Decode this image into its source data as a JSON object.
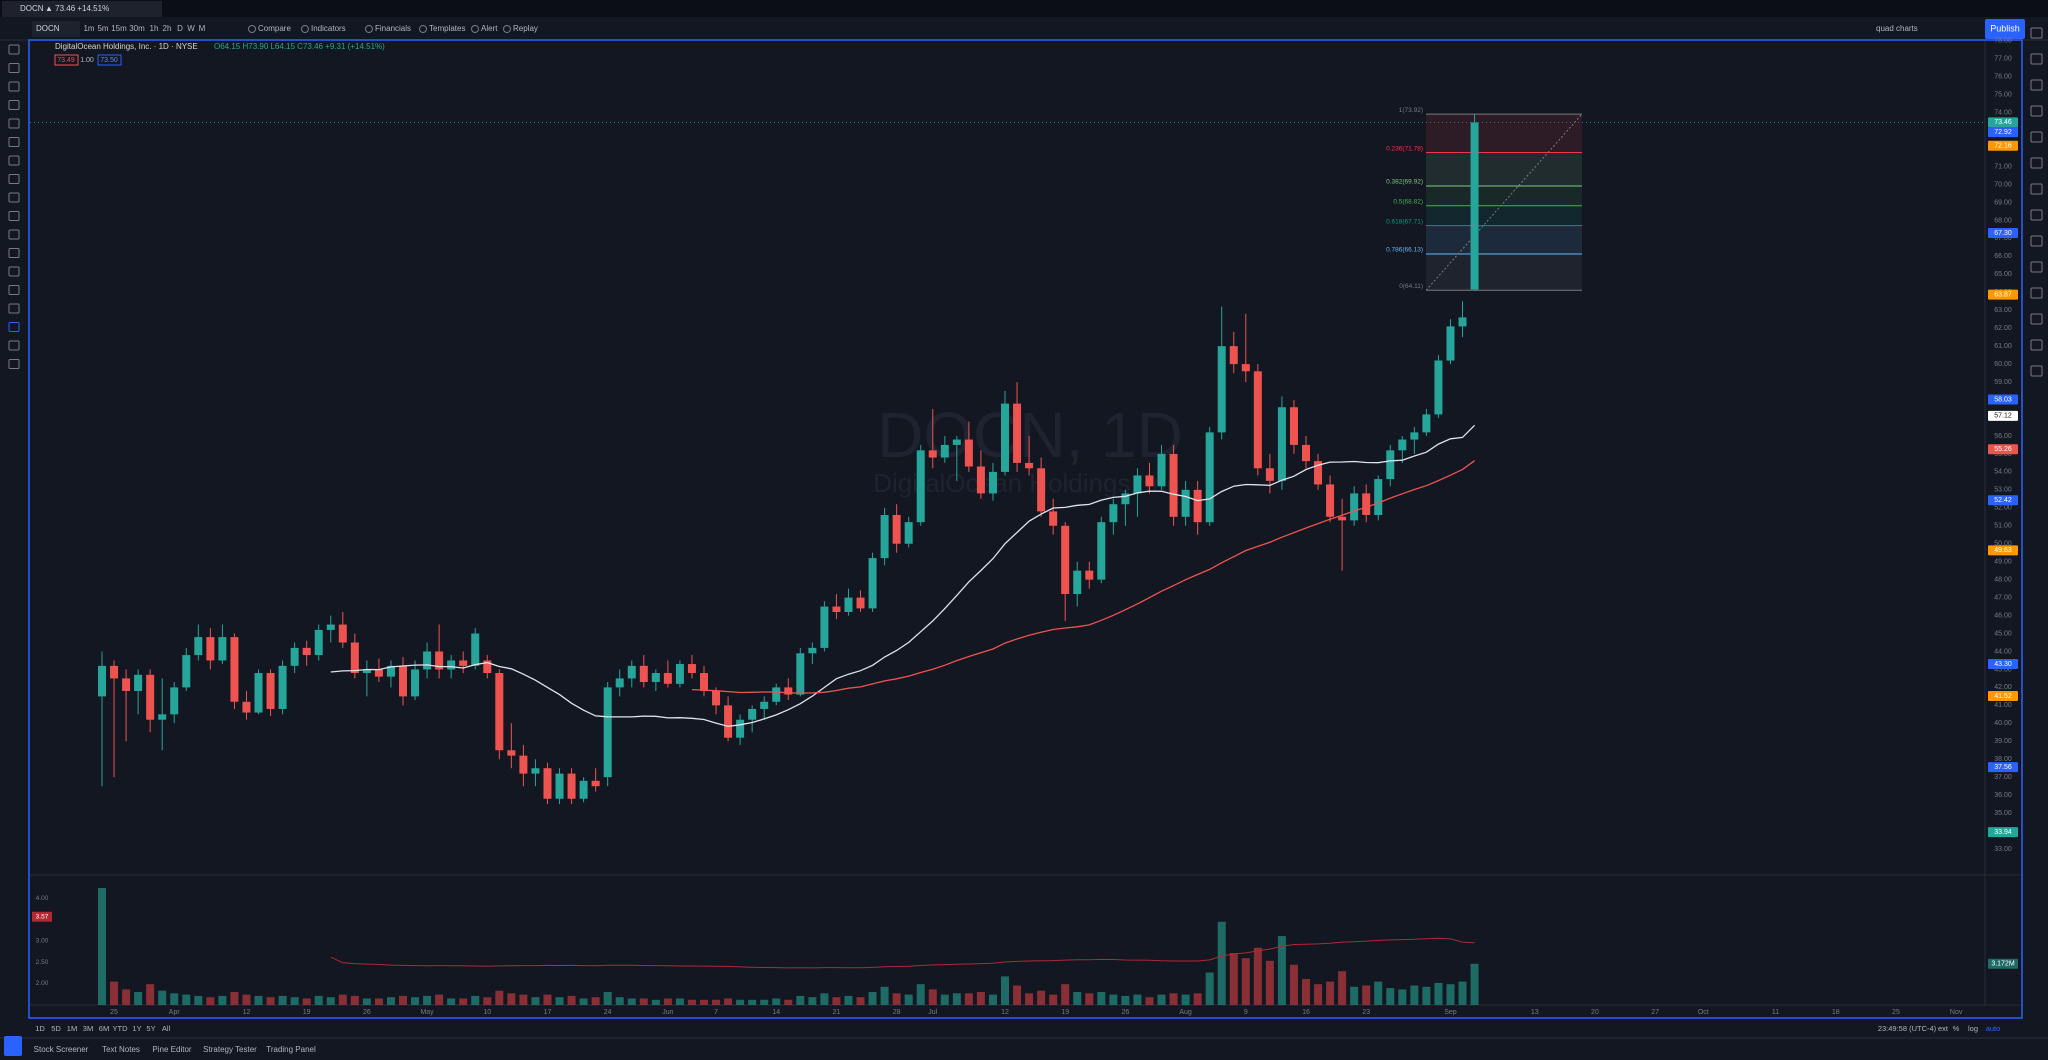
{
  "tab": {
    "symbol": "DOCN",
    "quote": "▲ 73.46 +14.51%"
  },
  "toolbar": {
    "symbol": "DOCN",
    "intervals": [
      "1m",
      "5m",
      "15m",
      "30m",
      "1h",
      "2h",
      "D",
      "W",
      "M"
    ],
    "buttons": [
      "Compare",
      "Indicators",
      "Financials",
      "Templates",
      "Alert",
      "Replay"
    ],
    "layout": "quad charts",
    "publish": "Publish"
  },
  "legend": {
    "title": "DigitalOcean Holdings, Inc. · 1D · NYSE",
    "ohlc": "O64.15 H73.90 L64.15 C73.46 +9.31 (+14.51%)",
    "sell": "73.49",
    "spread": "1.00",
    "buy": "73.50"
  },
  "watermark": {
    "symbol": "DOCN, 1D",
    "name": "DigitalOcean Holdings, Inc."
  },
  "price_axis": {
    "ticks": [
      {
        "value": 78,
        "label": "78.00"
      },
      {
        "value": 77,
        "label": "77.00"
      },
      {
        "value": 76,
        "label": "76.00"
      },
      {
        "value": 75,
        "label": "75.00"
      },
      {
        "value": 74,
        "label": "74.00"
      },
      {
        "value": 73,
        "label": "73.00"
      },
      {
        "value": 72,
        "label": "72.00"
      },
      {
        "value": 71,
        "label": "71.00"
      },
      {
        "value": 70,
        "label": "70.00"
      },
      {
        "value": 69,
        "label": "69.00"
      },
      {
        "value": 68,
        "label": "68.00"
      },
      {
        "value": 67,
        "label": "67.00"
      },
      {
        "value": 66,
        "label": "66.00"
      },
      {
        "value": 65,
        "label": "65.00"
      },
      {
        "value": 64,
        "label": "64.00"
      },
      {
        "value": 63,
        "label": "63.00"
      },
      {
        "value": 62,
        "label": "62.00"
      },
      {
        "value": 61,
        "label": "61.00"
      },
      {
        "value": 60,
        "label": "60.00"
      },
      {
        "value": 59,
        "label": "59.00"
      },
      {
        "value": 58,
        "label": "58.00"
      },
      {
        "value": 57,
        "label": "57.00"
      },
      {
        "value": 56,
        "label": "56.00"
      },
      {
        "value": 55,
        "label": "55.00"
      },
      {
        "value": 54,
        "label": "54.00"
      },
      {
        "value": 53,
        "label": "53.00"
      },
      {
        "value": 52,
        "label": "52.00"
      },
      {
        "value": 51,
        "label": "51.00"
      },
      {
        "value": 50,
        "label": "50.00"
      },
      {
        "value": 49,
        "label": "49.00"
      },
      {
        "value": 48,
        "label": "48.00"
      },
      {
        "value": 47,
        "label": "47.00"
      },
      {
        "value": 46,
        "label": "46.00"
      },
      {
        "value": 45,
        "label": "45.00"
      },
      {
        "value": 44,
        "label": "44.00"
      },
      {
        "value": 43,
        "label": "43.00"
      },
      {
        "value": 42,
        "label": "42.00"
      },
      {
        "value": 41,
        "label": "41.00"
      },
      {
        "value": 40,
        "label": "40.00"
      },
      {
        "value": 39,
        "label": "39.00"
      },
      {
        "value": 38,
        "label": "38.00"
      },
      {
        "value": 37,
        "label": "37.00"
      },
      {
        "value": 36,
        "label": "36.00"
      },
      {
        "value": 35,
        "label": "35.00"
      },
      {
        "value": 34,
        "label": "34.00"
      },
      {
        "value": 33,
        "label": "33.00"
      }
    ],
    "markers": [
      {
        "value": 73.46,
        "label": "73.46",
        "color": "#26a69a"
      },
      {
        "value": 72.92,
        "label": "72.92",
        "color": "#2962ff"
      },
      {
        "value": 72.16,
        "label": "72.16",
        "color": "#ff9800"
      },
      {
        "value": 67.3,
        "label": "67.30",
        "color": "#2962ff"
      },
      {
        "value": 63.87,
        "label": "63.87",
        "color": "#ff9800"
      },
      {
        "value": 58.03,
        "label": "58.03",
        "color": "#2962ff"
      },
      {
        "value": 57.12,
        "label": "57.12",
        "color": "#ffffff"
      },
      {
        "value": 55.26,
        "label": "55.26",
        "color": "#ef5350"
      },
      {
        "value": 52.42,
        "label": "52.42",
        "color": "#2962ff"
      },
      {
        "value": 49.63,
        "label": "49.63",
        "color": "#ff9800"
      },
      {
        "value": 43.3,
        "label": "43.30",
        "color": "#2962ff"
      },
      {
        "value": 41.52,
        "label": "41.52",
        "color": "#ff9800"
      },
      {
        "value": 37.56,
        "label": "37.56",
        "color": "#2962ff"
      },
      {
        "value": 33.94,
        "label": "33.94",
        "color": "#26a69a"
      }
    ]
  },
  "fib": {
    "levels": [
      {
        "value": 73.92,
        "label": "1(73.92)",
        "color": "#787b86"
      },
      {
        "value": 71.78,
        "label": "0.236(71.78)",
        "color": "#f23645"
      },
      {
        "value": 69.92,
        "label": "0.382(69.92)",
        "color": "#81c784"
      },
      {
        "value": 68.82,
        "label": "0.5(68.82)",
        "color": "#4caf50"
      },
      {
        "value": 67.71,
        "label": "0.618(67.71)",
        "color": "#089981"
      },
      {
        "value": 66.13,
        "label": "0.786(66.13)",
        "color": "#64b5f6"
      },
      {
        "value": 64.11,
        "label": "0(64.11)",
        "color": "#787b86"
      }
    ]
  },
  "candles": [
    [
      41.5,
      44,
      36.5,
      43.2
    ],
    [
      43.2,
      43.5,
      37,
      42.5
    ],
    [
      42.5,
      43,
      39,
      41.8
    ],
    [
      41.8,
      43,
      40.5,
      42.7
    ],
    [
      42.7,
      43,
      39.5,
      40.2
    ],
    [
      40.2,
      42.5,
      38.5,
      40.5
    ],
    [
      40.5,
      42.3,
      40,
      42
    ],
    [
      42,
      44.2,
      41.8,
      43.8
    ],
    [
      43.8,
      45.5,
      43.5,
      44.8
    ],
    [
      44.8,
      45.3,
      43,
      43.5
    ],
    [
      43.5,
      45.5,
      43.3,
      44.8
    ],
    [
      44.8,
      45,
      40.8,
      41.2
    ],
    [
      41.2,
      41.8,
      40.2,
      40.6
    ],
    [
      40.6,
      43,
      40.5,
      42.8
    ],
    [
      42.8,
      43,
      40.4,
      40.8
    ],
    [
      40.8,
      43.5,
      40.5,
      43.2
    ],
    [
      43.2,
      44.5,
      42.8,
      44.2
    ],
    [
      44.2,
      44.6,
      43.2,
      43.8
    ],
    [
      43.8,
      45.5,
      43.5,
      45.2
    ],
    [
      45.2,
      46,
      44.5,
      45.5
    ],
    [
      45.5,
      46.2,
      44.2,
      44.5
    ],
    [
      44.5,
      45,
      42.5,
      42.8
    ],
    [
      42.8,
      43.5,
      41.5,
      43
    ],
    [
      43,
      43.6,
      42.3,
      42.6
    ],
    [
      42.6,
      43.5,
      42,
      43.2
    ],
    [
      43.2,
      43.7,
      41,
      41.5
    ],
    [
      41.5,
      43.5,
      41.3,
      43
    ],
    [
      43,
      44.5,
      42.5,
      44
    ],
    [
      44,
      45.5,
      42.5,
      43
    ],
    [
      43,
      43.8,
      42.5,
      43.5
    ],
    [
      43.5,
      44,
      42.8,
      43.2
    ],
    [
      43.2,
      45.3,
      43,
      45
    ],
    [
      43.5,
      43.8,
      42.5,
      42.8
    ],
    [
      42.8,
      43,
      38,
      38.5
    ],
    [
      38.5,
      40,
      37.5,
      38.2
    ],
    [
      38.2,
      38.8,
      36.5,
      37.2
    ],
    [
      37.2,
      38,
      36.5,
      37.5
    ],
    [
      37.5,
      37.8,
      35.5,
      35.8
    ],
    [
      35.8,
      37.5,
      35.5,
      37.2
    ],
    [
      37.2,
      37.5,
      35.5,
      35.8
    ],
    [
      35.8,
      37,
      35.6,
      36.8
    ],
    [
      36.8,
      37.5,
      36.2,
      36.5
    ],
    [
      37,
      42.3,
      36.5,
      42
    ],
    [
      42,
      43,
      41.5,
      42.5
    ],
    [
      42.5,
      43.5,
      42,
      43.2
    ],
    [
      43.2,
      43.8,
      42,
      42.3
    ],
    [
      42.3,
      43,
      41.8,
      42.8
    ],
    [
      42.8,
      43.5,
      42,
      42.2
    ],
    [
      42.2,
      43.5,
      42,
      43.3
    ],
    [
      43.3,
      43.8,
      42.5,
      42.8
    ],
    [
      42.8,
      43.2,
      41.5,
      41.8
    ],
    [
      41.8,
      42,
      40.5,
      41
    ],
    [
      41,
      41.5,
      39,
      39.2
    ],
    [
      39.2,
      40.5,
      38.8,
      40.2
    ],
    [
      40.2,
      41,
      39.5,
      40.8
    ],
    [
      40.8,
      41.5,
      40.2,
      41.2
    ],
    [
      41.2,
      42.2,
      41,
      42
    ],
    [
      42,
      42.5,
      41.3,
      41.6
    ],
    [
      41.6,
      44.2,
      41.5,
      43.9
    ],
    [
      43.9,
      44.5,
      43.3,
      44.2
    ],
    [
      44.2,
      46.8,
      44,
      46.5
    ],
    [
      46.5,
      47.2,
      45.8,
      46.2
    ],
    [
      46.2,
      47.5,
      46,
      47
    ],
    [
      47,
      47.4,
      46.2,
      46.4
    ],
    [
      46.4,
      49.5,
      46.2,
      49.2
    ],
    [
      49.2,
      52,
      48.8,
      51.6
    ],
    [
      51.6,
      52.2,
      49.5,
      50
    ],
    [
      50,
      51.5,
      49.8,
      51.2
    ],
    [
      51.2,
      55.5,
      51,
      55.2
    ],
    [
      55.2,
      57.5,
      54.2,
      54.8
    ],
    [
      54.8,
      56,
      54.5,
      55.5
    ],
    [
      55.5,
      56,
      53.5,
      55.8
    ],
    [
      55.8,
      56.8,
      54,
      54.3
    ],
    [
      54.3,
      55.2,
      52.5,
      52.8
    ],
    [
      52.8,
      54.5,
      52.4,
      54
    ],
    [
      54,
      58.5,
      53.8,
      57.8
    ],
    [
      57.8,
      59,
      54,
      54.5
    ],
    [
      54.5,
      56,
      53.8,
      54.2
    ],
    [
      54.2,
      54.8,
      51.5,
      51.8
    ],
    [
      51.8,
      52.5,
      50.5,
      51
    ],
    [
      51,
      51.2,
      45.7,
      47.2
    ],
    [
      47.2,
      49,
      46.5,
      48.5
    ],
    [
      48.5,
      49,
      47.5,
      48
    ],
    [
      48,
      51.5,
      47.8,
      51.2
    ],
    [
      51.2,
      52.5,
      50.5,
      52.2
    ],
    [
      52.2,
      53,
      51,
      52.8
    ],
    [
      52.8,
      54.2,
      51.5,
      53.8
    ],
    [
      53.8,
      54.5,
      52.8,
      53.2
    ],
    [
      53.2,
      55.5,
      53,
      55
    ],
    [
      55,
      55.5,
      51,
      51.5
    ],
    [
      51.5,
      53.5,
      51,
      53
    ],
    [
      53,
      53.5,
      50.5,
      51.2
    ],
    [
      51.2,
      56.5,
      51,
      56.2
    ],
    [
      56.2,
      63.2,
      55.8,
      61
    ],
    [
      61,
      61.8,
      59.5,
      60
    ],
    [
      60,
      62.8,
      59,
      59.6
    ],
    [
      59.6,
      60,
      53.8,
      54.2
    ],
    [
      54.2,
      55,
      52.8,
      53.5
    ],
    [
      53.5,
      58.2,
      53,
      57.6
    ],
    [
      57.6,
      58,
      55,
      55.5
    ],
    [
      55.5,
      56,
      54.2,
      54.6
    ],
    [
      54.6,
      55,
      53,
      53.3
    ],
    [
      53.3,
      53.8,
      51.2,
      51.5
    ],
    [
      51.5,
      52.5,
      48.5,
      51.3
    ],
    [
      51.3,
      53.2,
      51,
      52.8
    ],
    [
      52.8,
      53.3,
      51.2,
      51.6
    ],
    [
      51.6,
      53.8,
      51.3,
      53.6
    ],
    [
      53.6,
      55.5,
      53.2,
      55.2
    ],
    [
      55.2,
      56,
      54.5,
      55.8
    ],
    [
      55.8,
      56.5,
      55,
      56.2
    ],
    [
      56.2,
      57.5,
      56,
      57.2
    ],
    [
      57.2,
      60.5,
      57,
      60.2
    ],
    [
      60.2,
      62.5,
      60,
      62.1
    ],
    [
      62.1,
      63.5,
      61.5,
      62.6
    ],
    [
      64.15,
      73.9,
      64.15,
      73.46
    ]
  ],
  "volume": {
    "values": [
      9.0,
      1.8,
      1.2,
      1.0,
      1.6,
      1.1,
      0.9,
      0.8,
      0.7,
      0.6,
      0.7,
      1.0,
      0.8,
      0.7,
      0.6,
      0.7,
      0.6,
      0.5,
      0.7,
      0.6,
      0.8,
      0.7,
      0.5,
      0.5,
      0.6,
      0.7,
      0.6,
      0.7,
      0.8,
      0.5,
      0.5,
      0.7,
      0.6,
      1.1,
      0.9,
      0.8,
      0.6,
      0.8,
      0.6,
      0.7,
      0.5,
      0.6,
      1.0,
      0.6,
      0.5,
      0.5,
      0.4,
      0.5,
      0.5,
      0.4,
      0.4,
      0.4,
      0.5,
      0.4,
      0.4,
      0.4,
      0.5,
      0.4,
      0.7,
      0.6,
      0.9,
      0.6,
      0.7,
      0.6,
      1.0,
      1.4,
      0.9,
      0.8,
      1.6,
      1.2,
      0.8,
      0.9,
      0.9,
      1.0,
      0.8,
      2.2,
      1.5,
      0.9,
      1.1,
      0.8,
      1.6,
      1.0,
      0.9,
      1.0,
      0.8,
      0.7,
      0.8,
      0.6,
      0.8,
      0.9,
      0.8,
      0.9,
      2.5,
      6.4,
      4.0,
      3.6,
      4.4,
      3.4,
      5.3,
      3.1,
      2.0,
      1.6,
      1.8,
      2.6,
      1.4,
      1.5,
      1.8,
      1.3,
      1.2,
      1.5,
      1.4,
      1.7,
      1.6,
      1.8,
      3.172
    ],
    "last": {
      "value": 3.172,
      "label": "3.172M"
    },
    "osc_ticks": [
      {
        "value": 4,
        "label": "4.00"
      },
      {
        "value": 3,
        "label": "3.00"
      },
      {
        "value": 2.5,
        "label": "2.50"
      },
      {
        "value": 2,
        "label": "2.00"
      }
    ],
    "osc_current": {
      "value": 3.57,
      "label": "3.57"
    }
  },
  "date_axis": [
    "25",
    "Apr",
    "12",
    "19",
    "26",
    "May",
    "10",
    "17",
    "24",
    "Jun",
    "7",
    "14",
    "21",
    "28",
    "Jul",
    "12",
    "19",
    "26",
    "Aug",
    "9",
    "16",
    "23",
    "Sep",
    "13",
    "20",
    "27",
    "Oct",
    "11",
    "18",
    "25",
    "Nov"
  ],
  "bottom": {
    "ranges": [
      "1D",
      "5D",
      "1M",
      "3M",
      "6M",
      "YTD",
      "1Y",
      "5Y",
      "All"
    ],
    "time": "23:49:58 (UTC-4)",
    "toggles": [
      "ext",
      "%",
      "log",
      "auto"
    ],
    "tabs": [
      "Stock Screener",
      "Text Notes",
      "Pine Editor",
      "Strategy Tester",
      "Trading Panel"
    ]
  }
}
